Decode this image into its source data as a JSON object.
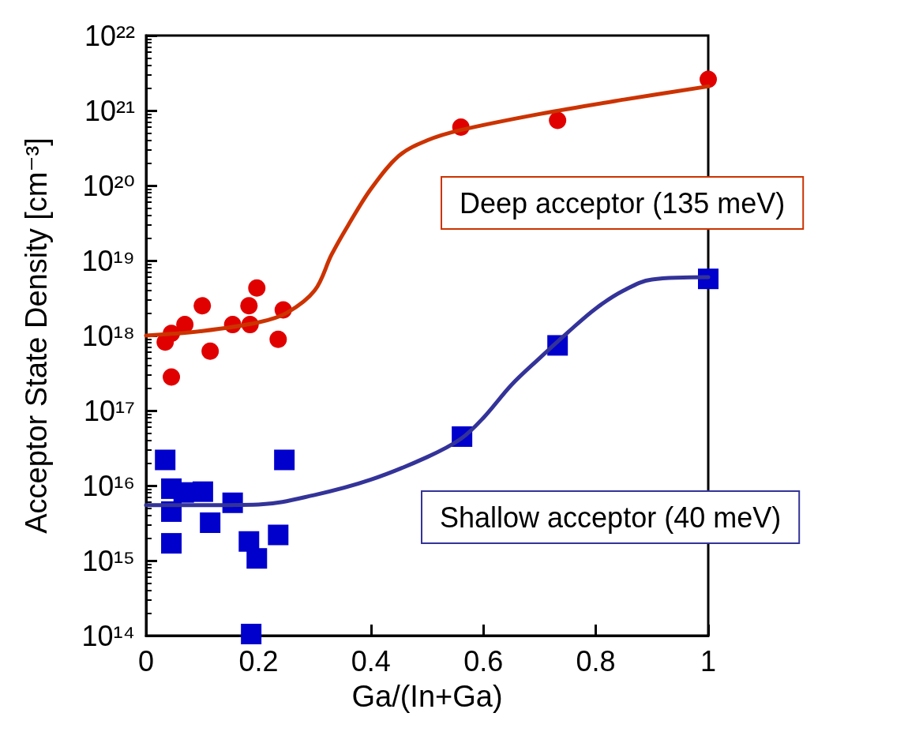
{
  "chart_data": {
    "type": "scatter",
    "xlabel": "Ga/(In+Ga)",
    "ylabel": "Acceptor State Density [cm⁻³]",
    "log": "y",
    "xlim": [
      0,
      1
    ],
    "xticks": [
      0,
      0.2,
      0.4,
      0.6,
      0.8,
      1
    ],
    "ylim": [
      100000000000000.0,
      1e+22
    ],
    "yticks": [
      {
        "value": 100000000000000.0,
        "label": "10¹⁴"
      },
      {
        "value": 1000000000000000.0,
        "label": "10¹⁵"
      },
      {
        "value": 1e+16,
        "label": "10¹⁶"
      },
      {
        "value": 1e+17,
        "label": "10¹⁷"
      },
      {
        "value": 1e+18,
        "label": "10¹⁸"
      },
      {
        "value": 1e+19,
        "label": "10¹⁹"
      },
      {
        "value": 1e+20,
        "label": "10²⁰"
      },
      {
        "value": 1e+21,
        "label": "10²¹"
      },
      {
        "value": 1e+22,
        "label": "10²²"
      }
    ],
    "grid": false,
    "series": [
      {
        "type": "line",
        "color": "#cc3300",
        "marker": "none",
        "line_style": "solid",
        "x": [
          0,
          0.1,
          0.2,
          0.25,
          0.3,
          0.33,
          0.36,
          0.4,
          0.45,
          0.5,
          0.56,
          0.7,
          0.85,
          1.0
        ],
        "values": [
          1e+18,
          1.15e+18,
          1.5e+18,
          2e+18,
          4e+18,
          1.2e+19,
          3e+19,
          9e+19,
          2.5e+20,
          4e+20,
          5.5e+20,
          9e+20,
          1.4e+21,
          2.1e+21
        ]
      },
      {
        "type": "line",
        "color": "#333399",
        "marker": "none",
        "line_style": "solid",
        "x": [
          0,
          0.1,
          0.2,
          0.3,
          0.4,
          0.5,
          0.56,
          0.6,
          0.65,
          0.7,
          0.75,
          0.8,
          0.85,
          0.9,
          1.0
        ],
        "values": [
          5500000000000000.0,
          5500000000000000.0,
          5600000000000000.0,
          7500000000000000.0,
          1.2e+16,
          2.4e+16,
          4.2e+16,
          8e+16,
          2.2e+17,
          5e+17,
          1.1e+18,
          2.3e+18,
          4e+18,
          5.6e+18,
          6e+18
        ]
      },
      {
        "color": "#e00000",
        "marker": "circle",
        "x": [
          0.034,
          0.045,
          0.069,
          0.1,
          0.045,
          0.154,
          0.185,
          0.235
        ],
        "values": [
          8.2e+17,
          1.07e+18,
          1.4e+18,
          2.5e+18,
          2.8e+17,
          1.4e+18,
          1.4e+18,
          8.9e+17
        ]
      },
      {
        "color": "#e00000",
        "marker": "circle",
        "x": [
          0.114,
          0.183,
          0.197,
          0.244,
          0.56,
          0.732,
          1.0
        ],
        "values": [
          6.2e+17,
          2.5e+18,
          4.3e+18,
          2.2e+18,
          6e+20,
          7.4e+20,
          2.6e+21
        ]
      },
      {
        "color": "#0000cc",
        "marker": "square",
        "x": [
          0.034,
          0.045,
          0.067,
          0.101,
          0.045,
          0.154,
          0.045,
          0.235,
          0.187
        ],
        "values": [
          2.2e+16,
          9100000000000000.0,
          8100000000000000.0,
          8300000000000000.0,
          4500000000000000.0,
          5900000000000000.0,
          1700000000000000.0,
          2200000000000000.0,
          105000000000000.0
        ]
      },
      {
        "color": "#0000cc",
        "marker": "square",
        "x": [
          0.114,
          0.183,
          0.197,
          0.246,
          0.562,
          0.732,
          1.0
        ],
        "values": [
          3200000000000000.0,
          1800000000000000.0,
          1070000000000000.0,
          2.2e+16,
          4.5e+16,
          7.4e+17,
          5.7e+18
        ]
      }
    ],
    "annotations": [
      "Deep acceptor (135 meV)",
      "Shallow acceptor (40 meV)"
    ]
  }
}
